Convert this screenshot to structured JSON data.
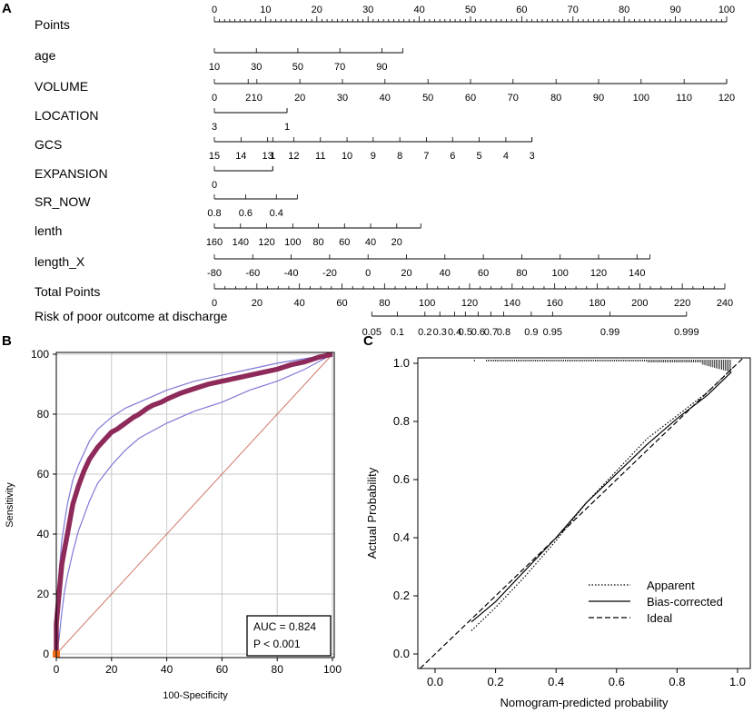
{
  "colors": {
    "roc_curve": "#8e2a5a",
    "ci_band": "#7f78d6",
    "diagonal": "#d07a6a",
    "grid": "#c8c8c8",
    "marker": "#f07020"
  },
  "chart_data": [
    {
      "type": "nomogram",
      "panel_label": "A",
      "domain_min": 0,
      "domain_max": 240,
      "rows": [
        {
          "label": "Points",
          "kind": "scale",
          "ticks": [
            {
              "label": "0",
              "p": 0
            },
            {
              "label": "10",
              "p": 10
            },
            {
              "label": "20",
              "p": 20
            },
            {
              "label": "30",
              "p": 30
            },
            {
              "label": "40",
              "p": 40
            },
            {
              "label": "50",
              "p": 50
            },
            {
              "label": "60",
              "p": 60
            },
            {
              "label": "70",
              "p": 70
            },
            {
              "label": "80",
              "p": 80
            },
            {
              "label": "90",
              "p": 90
            },
            {
              "label": "100",
              "p": 100
            }
          ]
        },
        {
          "label": "age",
          "kind": "var",
          "ticks": [
            {
              "label": "10",
              "p": 0
            },
            {
              "label": "30",
              "p": 8.2
            },
            {
              "label": "50",
              "p": 16.3
            },
            {
              "label": "70",
              "p": 24.5
            },
            {
              "label": "90",
              "p": 32.7
            }
          ],
          "end_p": 36.8
        },
        {
          "label": "VOLUME",
          "kind": "var",
          "ticks": [
            {
              "label": "0",
              "p": 0
            },
            {
              "label": "2",
              "p": 6.6
            },
            {
              "label": "10",
              "p": 8.3
            },
            {
              "label": "20",
              "p": 16.7
            },
            {
              "label": "30",
              "p": 25
            },
            {
              "label": "40",
              "p": 33.3
            },
            {
              "label": "50",
              "p": 41.7
            },
            {
              "label": "60",
              "p": 50
            },
            {
              "label": "70",
              "p": 58.3
            },
            {
              "label": "80",
              "p": 66.7
            },
            {
              "label": "90",
              "p": 75
            },
            {
              "label": "100",
              "p": 83.3
            },
            {
              "label": "110",
              "p": 91.7
            },
            {
              "label": "120",
              "p": 100
            }
          ],
          "end_p": 100
        },
        {
          "label": "LOCATION",
          "kind": "var",
          "ticks": [
            {
              "label": "3",
              "p": 0
            },
            {
              "label": "1",
              "p": 14.2
            }
          ],
          "end_p": 14.2
        },
        {
          "label": "GCS",
          "kind": "var",
          "ticks": [
            {
              "label": "15",
              "p": 0
            },
            {
              "label": "14",
              "p": 5.2
            },
            {
              "label": "13",
              "p": 10.4
            },
            {
              "label": "1",
              "p": 11.4
            },
            {
              "label": "12",
              "p": 15.5
            },
            {
              "label": "11",
              "p": 20.7
            },
            {
              "label": "10",
              "p": 25.9
            },
            {
              "label": "9",
              "p": 31
            },
            {
              "label": "8",
              "p": 36.2
            },
            {
              "label": "7",
              "p": 41.4
            },
            {
              "label": "6",
              "p": 46.5
            },
            {
              "label": "5",
              "p": 51.7
            },
            {
              "label": "4",
              "p": 56.9
            },
            {
              "label": "3",
              "p": 62
            }
          ],
          "end_p": 62
        },
        {
          "label": "EXPANSION",
          "kind": "var",
          "ticks": [
            {
              "label": "0",
              "p": 0
            },
            {
              "label": "",
              "p": 11.4
            }
          ],
          "end_p": 11.4
        },
        {
          "label": "SR_NOW",
          "kind": "var",
          "ticks": [
            {
              "label": "0.8",
              "p": 0
            },
            {
              "label": "0.6",
              "p": 6.1
            },
            {
              "label": "0.4",
              "p": 12.1
            }
          ],
          "end_p": 16.2
        },
        {
          "label": "lenth",
          "kind": "var",
          "ticks": [
            {
              "label": "160",
              "p": 0
            },
            {
              "label": "140",
              "p": 5.1
            },
            {
              "label": "120",
              "p": 10.2
            },
            {
              "label": "100",
              "p": 15.3
            },
            {
              "label": "80",
              "p": 20.3
            },
            {
              "label": "60",
              "p": 25.4
            },
            {
              "label": "40",
              "p": 30.5
            },
            {
              "label": "20",
              "p": 35.6
            }
          ],
          "end_p": 40.3
        },
        {
          "label": "length_X",
          "kind": "var",
          "ticks": [
            {
              "label": "-80",
              "p": 0
            },
            {
              "label": "-60",
              "p": 7.5
            },
            {
              "label": "-40",
              "p": 15
            },
            {
              "label": "-20",
              "p": 22.5
            },
            {
              "label": "0",
              "p": 30
            },
            {
              "label": "20",
              "p": 37.5
            },
            {
              "label": "40",
              "p": 45
            },
            {
              "label": "60",
              "p": 52.5
            },
            {
              "label": "80",
              "p": 60
            },
            {
              "label": "100",
              "p": 67.5
            },
            {
              "label": "120",
              "p": 75
            },
            {
              "label": "140",
              "p": 82.5
            }
          ],
          "end_p": 85
        },
        {
          "label": "Total Points",
          "kind": "total",
          "ticks": [
            {
              "label": "0",
              "p": 0
            },
            {
              "label": "20",
              "p": 20
            },
            {
              "label": "40",
              "p": 40
            },
            {
              "label": "60",
              "p": 60
            },
            {
              "label": "80",
              "p": 80
            },
            {
              "label": "100",
              "p": 100
            },
            {
              "label": "120",
              "p": 120
            },
            {
              "label": "140",
              "p": 140
            },
            {
              "label": "160",
              "p": 160
            },
            {
              "label": "180",
              "p": 180
            },
            {
              "label": "200",
              "p": 200
            },
            {
              "label": "220",
              "p": 220
            },
            {
              "label": "240",
              "p": 240
            }
          ]
        },
        {
          "label": "Risk of poor outcome at discharge",
          "kind": "risk",
          "ticks": [
            {
              "label": "0.05",
              "p": 74
            },
            {
              "label": "0.1",
              "p": 86
            },
            {
              "label": "0.2",
              "p": 99
            },
            {
              "label": "0.3",
              "p": 106
            },
            {
              "label": "0.4",
              "p": 113
            },
            {
              "label": "0.5",
              "p": 118
            },
            {
              "label": "0.6",
              "p": 124
            },
            {
              "label": "0.7",
              "p": 130
            },
            {
              "label": "0.8",
              "p": 136
            },
            {
              "label": "0.9",
              "p": 149
            },
            {
              "label": "0.95",
              "p": 159
            },
            {
              "label": "0.99",
              "p": 186
            },
            {
              "label": "0.999",
              "p": 222
            }
          ],
          "start_p": 74,
          "end_p": 222
        }
      ]
    },
    {
      "type": "line",
      "panel_label": "B",
      "xlabel": "100-Specificity",
      "ylabel": "Sensitivity",
      "xlim": [
        0,
        100
      ],
      "ylim": [
        0,
        100
      ],
      "xticks": [
        0,
        20,
        40,
        60,
        80,
        100
      ],
      "yticks": [
        0,
        20,
        40,
        60,
        80,
        100
      ],
      "grid": true,
      "series": [
        {
          "name": "ROC",
          "x": [
            0,
            0,
            0.5,
            1,
            2,
            3,
            4,
            5,
            6,
            8,
            10,
            12,
            15,
            18,
            20,
            22,
            25,
            28,
            30,
            33,
            35,
            38,
            40,
            45,
            50,
            55,
            60,
            65,
            70,
            75,
            80,
            85,
            90,
            95,
            100
          ],
          "y": [
            0,
            10,
            15,
            20,
            30,
            35,
            40,
            45,
            50,
            56,
            61,
            65,
            69,
            72,
            74,
            75,
            77,
            79,
            80,
            82,
            83,
            84,
            85,
            87,
            88.5,
            90,
            91,
            92,
            93,
            94,
            95,
            96.5,
            97.5,
            99,
            100
          ]
        },
        {
          "name": "CI upper",
          "x": [
            0,
            0.5,
            1,
            2,
            3,
            4,
            6,
            8,
            10,
            12,
            15,
            20,
            25,
            30,
            40,
            50,
            60,
            70,
            80,
            90,
            100
          ],
          "y": [
            14,
            21,
            27,
            38,
            44,
            50,
            58,
            63,
            67,
            71,
            75,
            79,
            82,
            84,
            88,
            91,
            93,
            95,
            97,
            98.5,
            100
          ]
        },
        {
          "name": "CI lower",
          "x": [
            0,
            1,
            2,
            3,
            4,
            6,
            8,
            10,
            12,
            15,
            20,
            25,
            30,
            40,
            50,
            60,
            70,
            80,
            90,
            100
          ],
          "y": [
            0,
            5,
            14,
            21,
            26,
            34,
            41,
            46,
            51,
            57,
            63,
            68,
            72,
            77,
            81,
            84,
            88,
            91,
            95,
            100
          ]
        },
        {
          "name": "Reference",
          "x": [
            0,
            100
          ],
          "y": [
            0,
            100
          ]
        }
      ],
      "annotation": {
        "auc": "AUC = 0.824",
        "p": "P < 0.001"
      }
    },
    {
      "type": "line",
      "panel_label": "C",
      "xlabel": "Nomogram-predicted probability",
      "ylabel": "Actual Probability",
      "xlim": [
        -0.05,
        1.02
      ],
      "ylim": [
        -0.05,
        1.04
      ],
      "xticks": [
        "0.0",
        "0.2",
        "0.4",
        "0.6",
        "0.8",
        "1.0"
      ],
      "yticks": [
        "0.0",
        "0.2",
        "0.4",
        "0.6",
        "0.8",
        "1.0"
      ],
      "series": [
        {
          "name": "Apparent",
          "x": [
            0.12,
            0.2,
            0.3,
            0.4,
            0.5,
            0.6,
            0.7,
            0.8,
            0.9,
            0.98
          ],
          "y": [
            0.08,
            0.16,
            0.27,
            0.39,
            0.52,
            0.63,
            0.74,
            0.82,
            0.9,
            0.98
          ]
        },
        {
          "name": "Bias-corrected",
          "x": [
            0.12,
            0.2,
            0.3,
            0.4,
            0.5,
            0.6,
            0.7,
            0.8,
            0.9,
            0.98
          ],
          "y": [
            0.11,
            0.18,
            0.29,
            0.4,
            0.52,
            0.62,
            0.72,
            0.81,
            0.89,
            0.97
          ]
        },
        {
          "name": "Ideal",
          "x": [
            -0.05,
            1.02
          ],
          "y": [
            -0.05,
            1.02
          ]
        }
      ],
      "legend": [
        "Apparent",
        "Bias-corrected",
        "Ideal"
      ],
      "legend_position": "bottom-right"
    }
  ]
}
